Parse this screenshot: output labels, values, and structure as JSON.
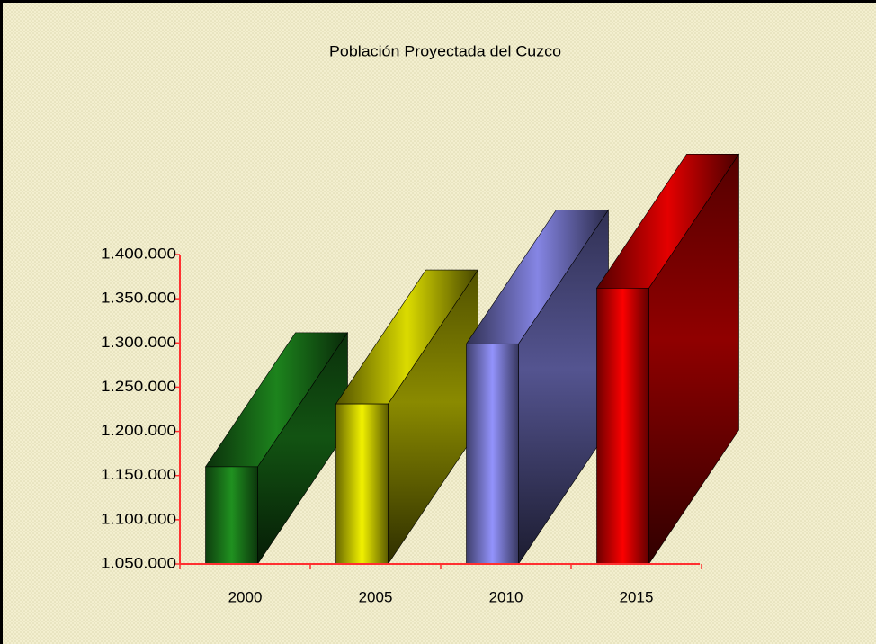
{
  "chart_data": {
    "type": "bar3d",
    "title": "Población Proyectada del Cuzco",
    "categories": [
      "2000",
      "2005",
      "2010",
      "2015"
    ],
    "values": [
      1160000,
      1231000,
      1299000,
      1362000
    ],
    "colors": [
      "#1e8a1e",
      "#e6e600",
      "#8c8cf0",
      "#f00000"
    ],
    "axis_color": "#ff3030",
    "ylim": [
      1050000,
      1400000
    ],
    "yticks": [
      {
        "value": 1050000,
        "label": "1.050.000"
      },
      {
        "value": 1100000,
        "label": "1.100.000"
      },
      {
        "value": 1150000,
        "label": "1.150.000"
      },
      {
        "value": 1200000,
        "label": "1.200.000"
      },
      {
        "value": 1250000,
        "label": "1.250.000"
      },
      {
        "value": 1300000,
        "label": "1.300.000"
      },
      {
        "value": 1350000,
        "label": "1.350.000"
      },
      {
        "value": 1400000,
        "label": "1.400.000"
      }
    ]
  }
}
